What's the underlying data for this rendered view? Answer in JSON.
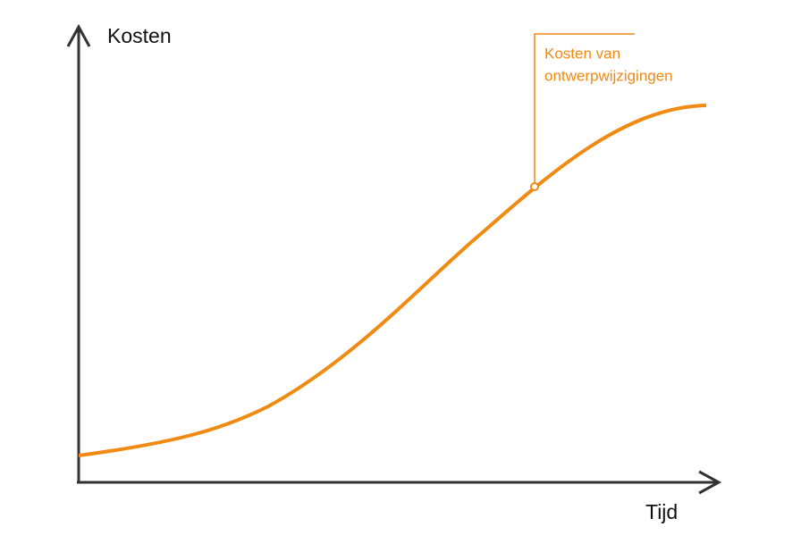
{
  "y_axis_label": "Kosten",
  "x_axis_label": "Tijd",
  "annotation": {
    "lines": [
      "Kosten van",
      "ontwerpwijzigingen"
    ]
  }
}
